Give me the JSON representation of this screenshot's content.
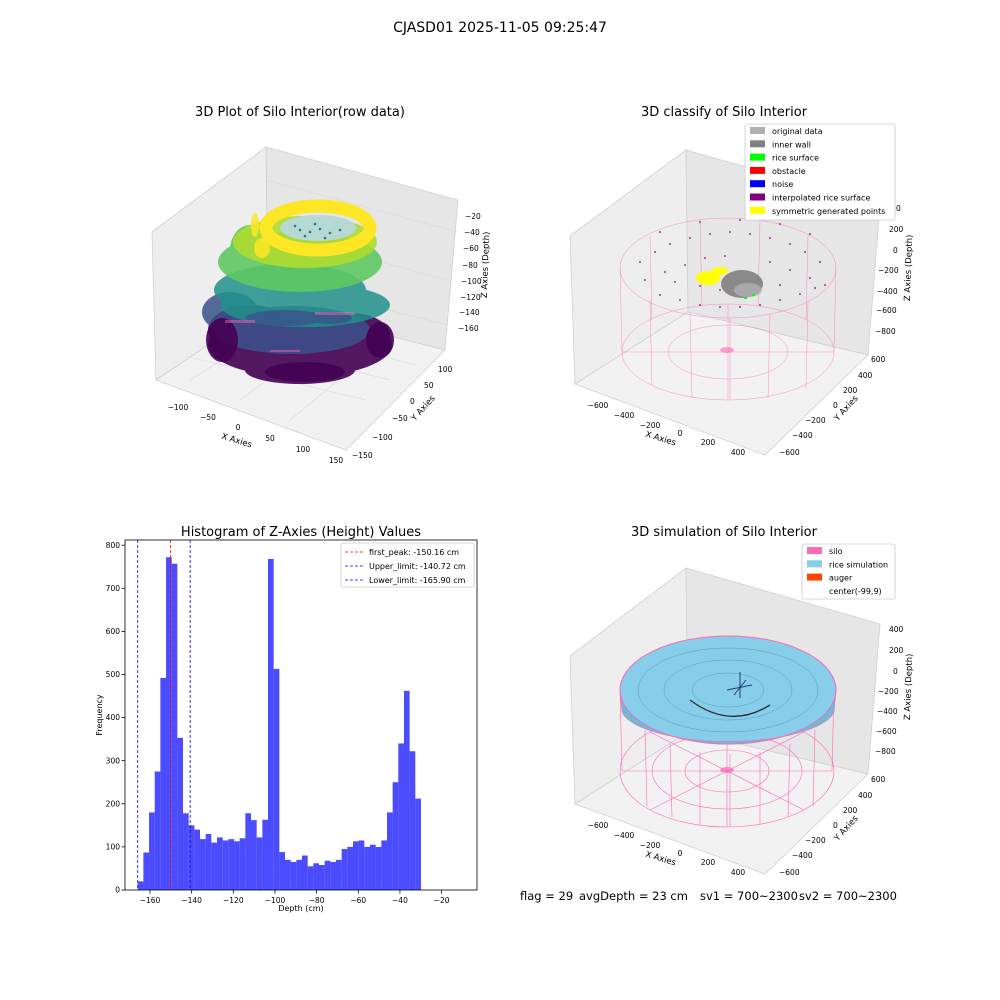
{
  "figure": {
    "suptitle": "CJASD01 2025-11-05 09:25:47",
    "footer": {
      "flag": "flag = 29",
      "avg_depth": "avgDepth = 23 cm",
      "sv1": "sv1 = 700~2300",
      "sv2": "sv2 = 700~2300"
    }
  },
  "panels": {
    "raw": {
      "title": "3D Plot of Silo Interior(row data)",
      "xlabel": "X Axies",
      "ylabel": "Y Axies",
      "zlabel": "Z Axies (Depth)",
      "xticks": [
        "−100",
        "−50",
        "0",
        "50",
        "100",
        "150"
      ],
      "yticks": [
        "100",
        "50",
        "0",
        "−50",
        "−100",
        "−150"
      ],
      "zticks": [
        "−20",
        "−40",
        "−60",
        "−80",
        "−100",
        "−120",
        "−140",
        "−160"
      ]
    },
    "classify": {
      "title": "3D classify of Silo Interior",
      "xlabel": "X Axies",
      "ylabel": "Y Axies",
      "zlabel": "Z Axies (Depth)",
      "xticks": [
        "−600",
        "−400",
        "−200",
        "0",
        "200",
        "400"
      ],
      "yticks": [
        "600",
        "400",
        "200",
        "0",
        "−200",
        "−400",
        "−600"
      ],
      "zticks": [
        "200",
        "0",
        "−200",
        "−400",
        "−600",
        "−800"
      ],
      "ztick_partial": "0",
      "legend": [
        {
          "label": "original data",
          "color": "#b0b0b0"
        },
        {
          "label": "inner wall",
          "color": "#808080"
        },
        {
          "label": "rice surface",
          "color": "#00ff00"
        },
        {
          "label": "obstacle",
          "color": "#ff0000"
        },
        {
          "label": "noise",
          "color": "#0000ff"
        },
        {
          "label": "interpolated rice surface",
          "color": "#800080"
        },
        {
          "label": "symmetric generated points",
          "color": "#ffff00"
        }
      ]
    },
    "simulation": {
      "title": "3D simulation of Silo Interior",
      "xlabel": "X Axies",
      "ylabel": "Y Axies",
      "zlabel": "Z Axies (Depth)",
      "xticks": [
        "−600",
        "−400",
        "−200",
        "0",
        "200",
        "400"
      ],
      "yticks": [
        "600",
        "400",
        "200",
        "0",
        "−200",
        "−400",
        "−600"
      ],
      "zticks": [
        "400",
        "200",
        "0",
        "−200",
        "−400",
        "−600",
        "−800"
      ],
      "legend": [
        {
          "label": "silo",
          "color": "#ff69b4"
        },
        {
          "label": "rice simulation",
          "color": "#87ceeb"
        },
        {
          "label": "auger",
          "color": "#ff4500"
        },
        {
          "label": "center(-99,9)",
          "color": "#ffffff"
        }
      ]
    }
  },
  "chart_data": {
    "type": "bar",
    "title": "Histogram of Z-Axies (Height) Values",
    "xlabel": "Depth (cm)",
    "ylabel": "Frequency",
    "xlim": [
      -172,
      -3
    ],
    "ylim": [
      0,
      812
    ],
    "xticks": [
      -160,
      -140,
      -120,
      -100,
      -80,
      -60,
      -40,
      -20
    ],
    "yticks": [
      0,
      100,
      200,
      300,
      400,
      500,
      600,
      700,
      800
    ],
    "bin_start": -165.9,
    "bin_width": 2.72,
    "values": [
      20,
      87,
      180,
      275,
      492,
      772,
      757,
      353,
      178,
      150,
      140,
      118,
      130,
      110,
      122,
      115,
      118,
      113,
      120,
      178,
      162,
      122,
      163,
      768,
      513,
      88,
      70,
      65,
      70,
      80,
      55,
      62,
      58,
      68,
      65,
      70,
      95,
      100,
      113,
      115,
      100,
      105,
      100,
      115,
      180,
      250,
      340,
      462,
      322,
      212
    ],
    "bar_color": "#0000ff",
    "vlines": [
      {
        "label": "first_peak: -150.16 cm",
        "x": -150.16,
        "color": "#ff0000"
      },
      {
        "label": "Upper_limit: -140.72 cm",
        "x": -140.72,
        "color": "#0000ff"
      },
      {
        "label": "Lower_limit: -165.90 cm",
        "x": -165.9,
        "color": "#0000ff"
      }
    ],
    "legend_position": "top-right",
    "grid": false
  }
}
